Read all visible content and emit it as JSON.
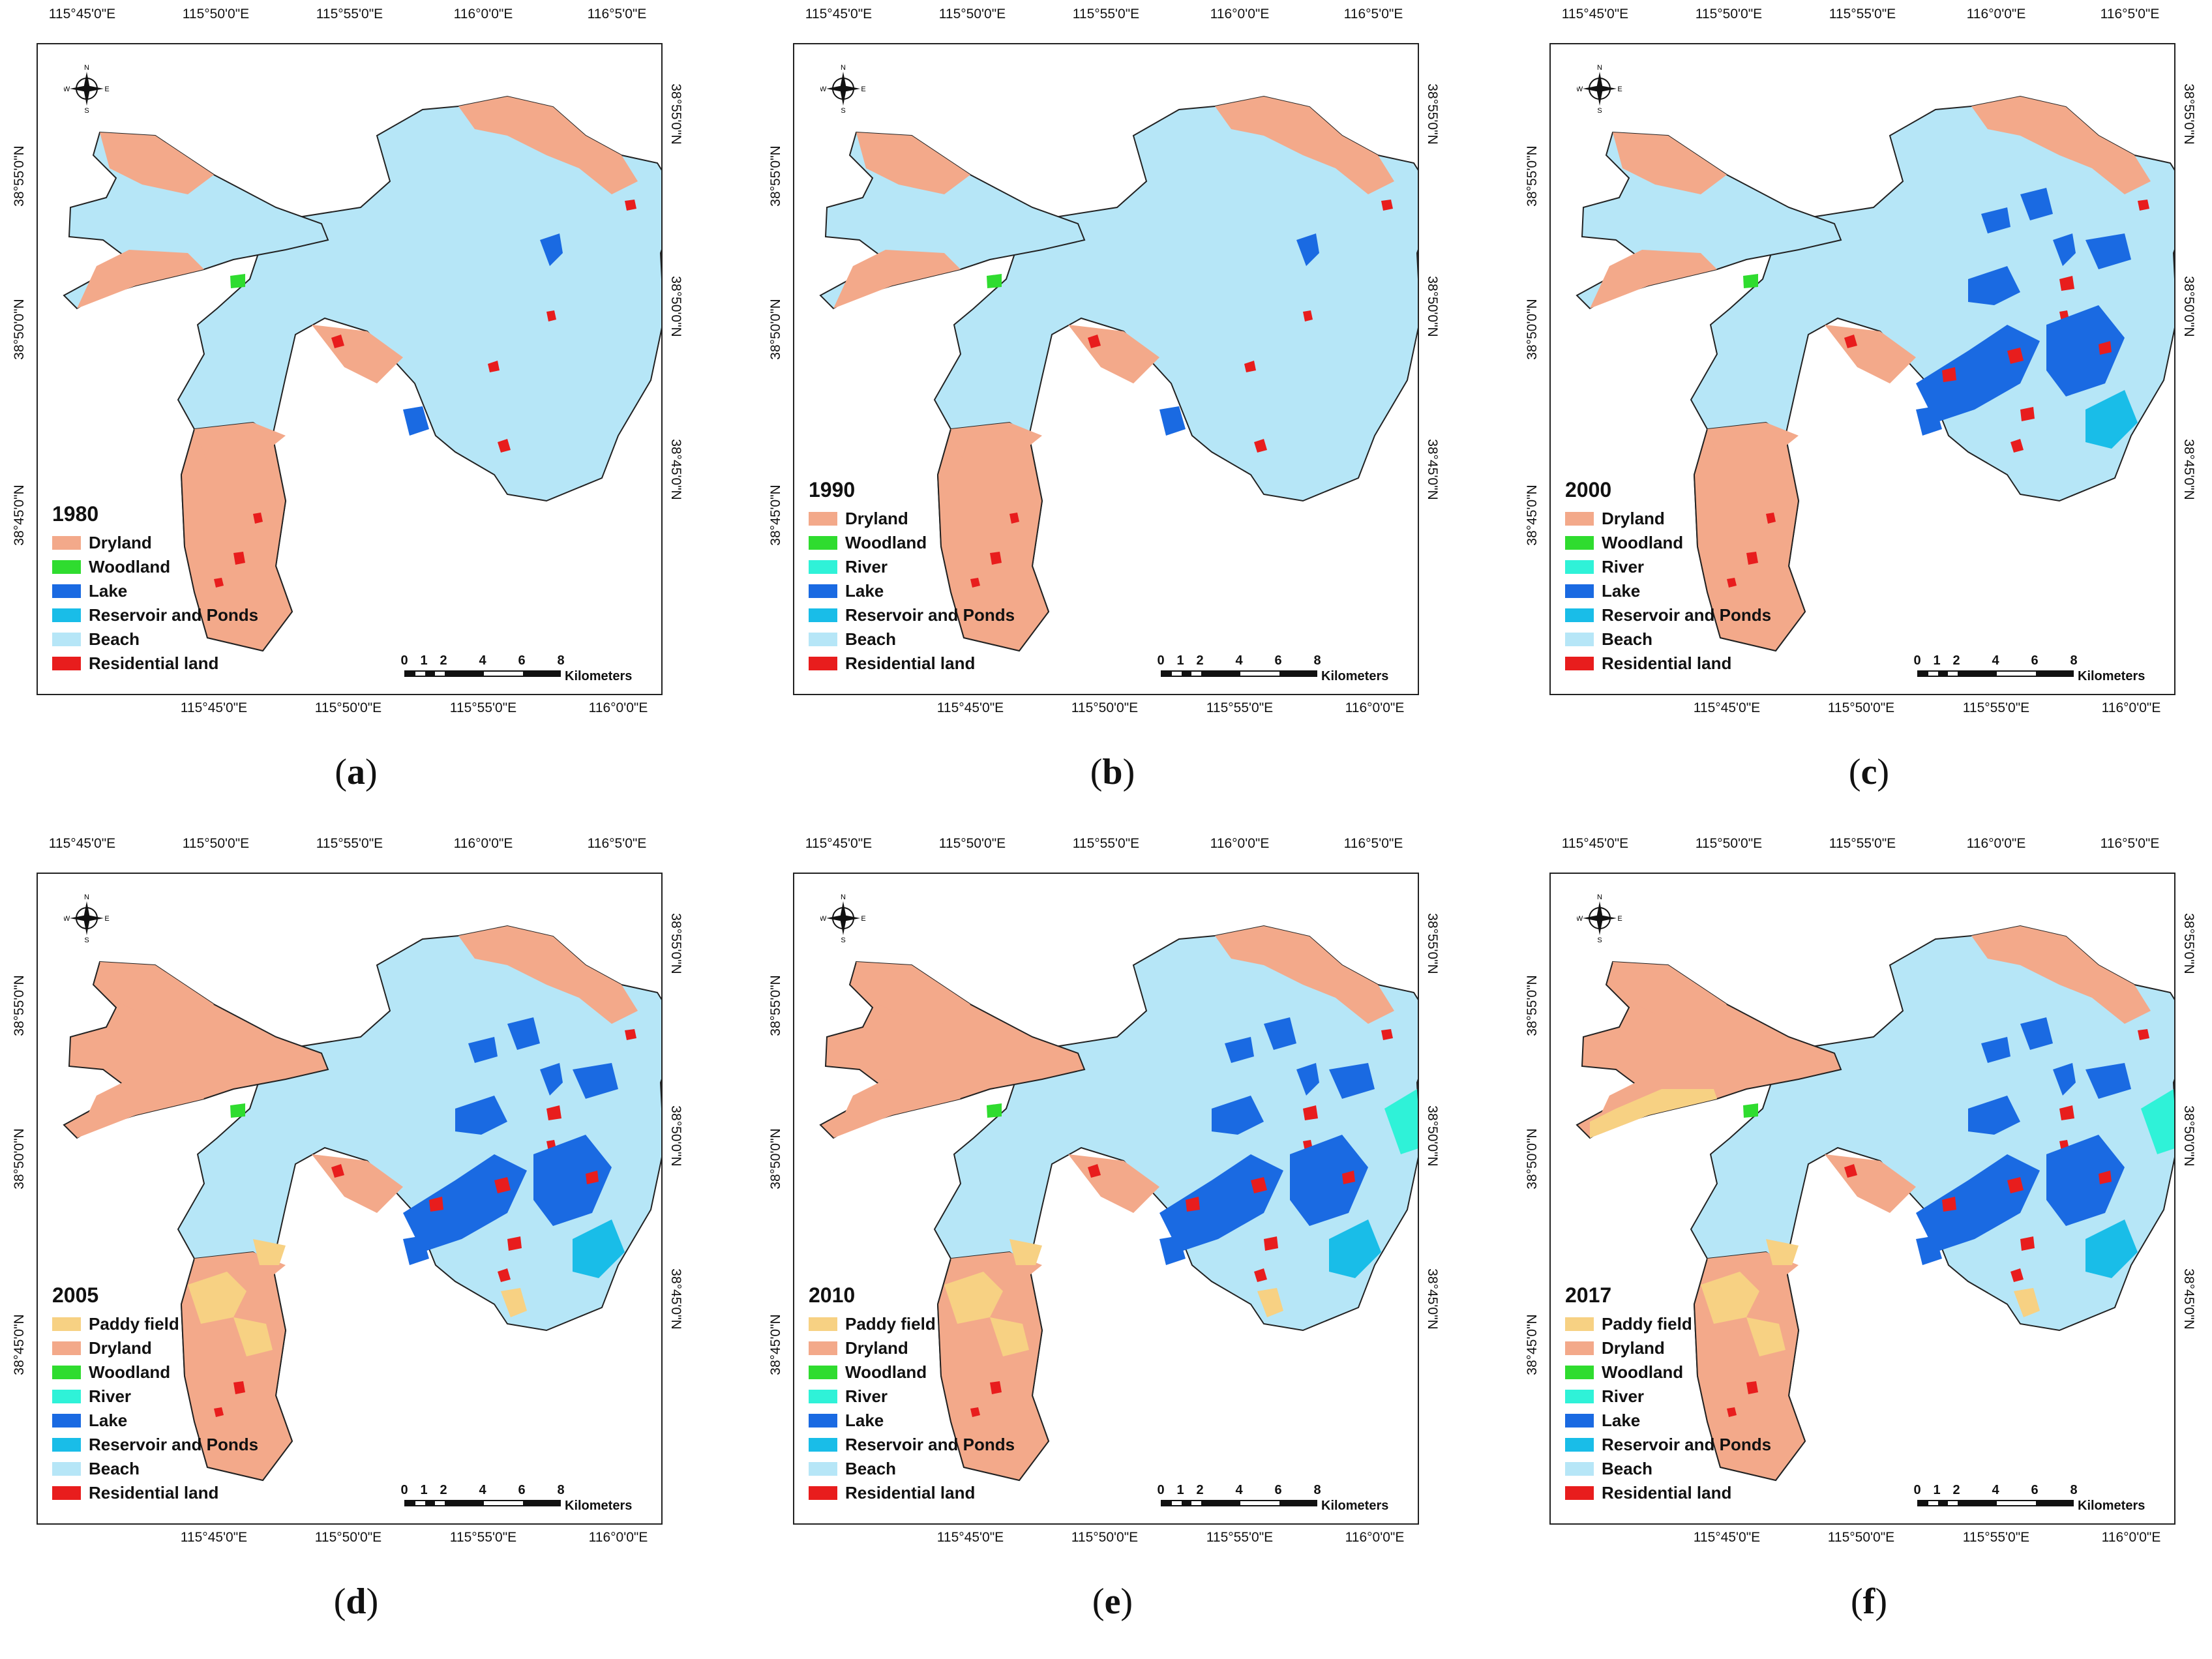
{
  "colors": {
    "paddy": "#f7d183",
    "dryland": "#f3a98a",
    "woodland": "#2fdc2f",
    "river": "#2ff2d8",
    "lake": "#1a6ae2",
    "reservoir": "#19bde8",
    "beach": "#b6e6f7",
    "residential": "#e81d1d"
  },
  "axes": {
    "top": [
      "115°45'0\"E",
      "115°50'0\"E",
      "115°55'0\"E",
      "116°0'0\"E",
      "116°5'0\"E"
    ],
    "bottom": [
      "115°45'0\"E",
      "115°50'0\"E",
      "115°55'0\"E",
      "116°0'0\"E"
    ],
    "left": [
      "38°55'0\"N",
      "38°50'0\"N",
      "38°45'0\"N"
    ],
    "right": [
      "38°55'0\"N",
      "38°50'0\"N",
      "38°45'0\"N"
    ]
  },
  "compass": {
    "n": "N",
    "s": "S",
    "e": "E",
    "w": "W"
  },
  "scalebar": {
    "ticks": [
      "0",
      "1",
      "2",
      "4",
      "6",
      "8"
    ],
    "unit": "Kilometers"
  },
  "panels": [
    {
      "caption_letter": "a",
      "year": "1980",
      "legend": [
        {
          "label": "Dryland",
          "color": "dryland"
        },
        {
          "label": "Woodland",
          "color": "woodland"
        },
        {
          "label": "Lake",
          "color": "lake"
        },
        {
          "label": "Reservoir and Ponds",
          "color": "reservoir"
        },
        {
          "label": "Beach",
          "color": "beach"
        },
        {
          "label": "Residential land",
          "color": "residential"
        }
      ]
    },
    {
      "caption_letter": "b",
      "year": "1990",
      "legend": [
        {
          "label": "Dryland",
          "color": "dryland"
        },
        {
          "label": "Woodland",
          "color": "woodland"
        },
        {
          "label": "River",
          "color": "river"
        },
        {
          "label": "Lake",
          "color": "lake"
        },
        {
          "label": "Reservoir and Ponds",
          "color": "reservoir"
        },
        {
          "label": "Beach",
          "color": "beach"
        },
        {
          "label": "Residential land",
          "color": "residential"
        }
      ]
    },
    {
      "caption_letter": "c",
      "year": "2000",
      "legend": [
        {
          "label": "Dryland",
          "color": "dryland"
        },
        {
          "label": "Woodland",
          "color": "woodland"
        },
        {
          "label": "River",
          "color": "river"
        },
        {
          "label": "Lake",
          "color": "lake"
        },
        {
          "label": "Reservoir and Ponds",
          "color": "reservoir"
        },
        {
          "label": "Beach",
          "color": "beach"
        },
        {
          "label": "Residential land",
          "color": "residential"
        }
      ]
    },
    {
      "caption_letter": "d",
      "year": "2005",
      "legend": [
        {
          "label": "Paddy field",
          "color": "paddy"
        },
        {
          "label": "Dryland",
          "color": "dryland"
        },
        {
          "label": "Woodland",
          "color": "woodland"
        },
        {
          "label": "River",
          "color": "river"
        },
        {
          "label": "Lake",
          "color": "lake"
        },
        {
          "label": "Reservoir and Ponds",
          "color": "reservoir"
        },
        {
          "label": "Beach",
          "color": "beach"
        },
        {
          "label": "Residential land",
          "color": "residential"
        }
      ]
    },
    {
      "caption_letter": "e",
      "year": "2010",
      "legend": [
        {
          "label": "Paddy field",
          "color": "paddy"
        },
        {
          "label": "Dryland",
          "color": "dryland"
        },
        {
          "label": "Woodland",
          "color": "woodland"
        },
        {
          "label": "River",
          "color": "river"
        },
        {
          "label": "Lake",
          "color": "lake"
        },
        {
          "label": "Reservoir and Ponds",
          "color": "reservoir"
        },
        {
          "label": "Beach",
          "color": "beach"
        },
        {
          "label": "Residential land",
          "color": "residential"
        }
      ]
    },
    {
      "caption_letter": "f",
      "year": "2017",
      "legend": [
        {
          "label": "Paddy field",
          "color": "paddy"
        },
        {
          "label": "Dryland",
          "color": "dryland"
        },
        {
          "label": "Woodland",
          "color": "woodland"
        },
        {
          "label": "River",
          "color": "river"
        },
        {
          "label": "Lake",
          "color": "lake"
        },
        {
          "label": "Reservoir and Ponds",
          "color": "reservoir"
        },
        {
          "label": "Beach",
          "color": "beach"
        },
        {
          "label": "Residential land",
          "color": "residential"
        }
      ]
    }
  ]
}
